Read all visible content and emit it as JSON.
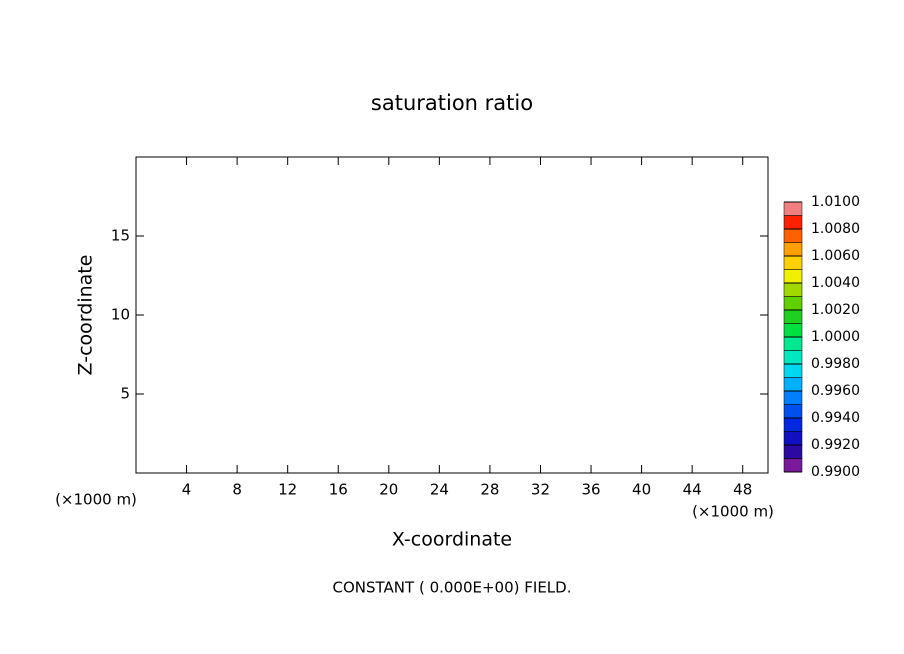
{
  "chart_data": {
    "type": "contour",
    "title": "saturation ratio",
    "x_label": "X-coordinate",
    "y_label": "Z-coordinate",
    "x_unit": "(×1000 m)",
    "y_unit": "(×1000 m)",
    "note": "CONSTANT ( 0.000E+00) FIELD.",
    "xlim": [
      0,
      50
    ],
    "xticks": [
      4,
      8,
      12,
      16,
      20,
      24,
      28,
      32,
      36,
      40,
      44,
      48
    ],
    "ylim": [
      0,
      20
    ],
    "yticks": [
      5,
      10,
      15
    ],
    "colorbar_lim": [
      0.99,
      1.01
    ],
    "colorbar_ticks": [
      {
        "value": 0.99,
        "label": "0.9900"
      },
      {
        "value": 0.992,
        "label": "0.9920"
      },
      {
        "value": 0.994,
        "label": "0.9940"
      },
      {
        "value": 0.996,
        "label": "0.9960"
      },
      {
        "value": 0.998,
        "label": "0.9980"
      },
      {
        "value": 1.0,
        "label": "1.0000"
      },
      {
        "value": 1.002,
        "label": "1.0020"
      },
      {
        "value": 1.004,
        "label": "1.0040"
      },
      {
        "value": 1.006,
        "label": "1.0060"
      },
      {
        "value": 1.008,
        "label": "1.0080"
      },
      {
        "value": 1.01,
        "label": "1.0100"
      }
    ],
    "colorbar_colors": [
      "#7a1a9a",
      "#2a0aa0",
      "#1010c0",
      "#0028e0",
      "#0050f0",
      "#0080ff",
      "#00b0ff",
      "#00d8f0",
      "#00e8c0",
      "#00e890",
      "#00e040",
      "#20d020",
      "#60d000",
      "#a0d800",
      "#f0f000",
      "#ffd000",
      "#ffa000",
      "#ff6000",
      "#ff2000",
      "#f08080"
    ]
  }
}
